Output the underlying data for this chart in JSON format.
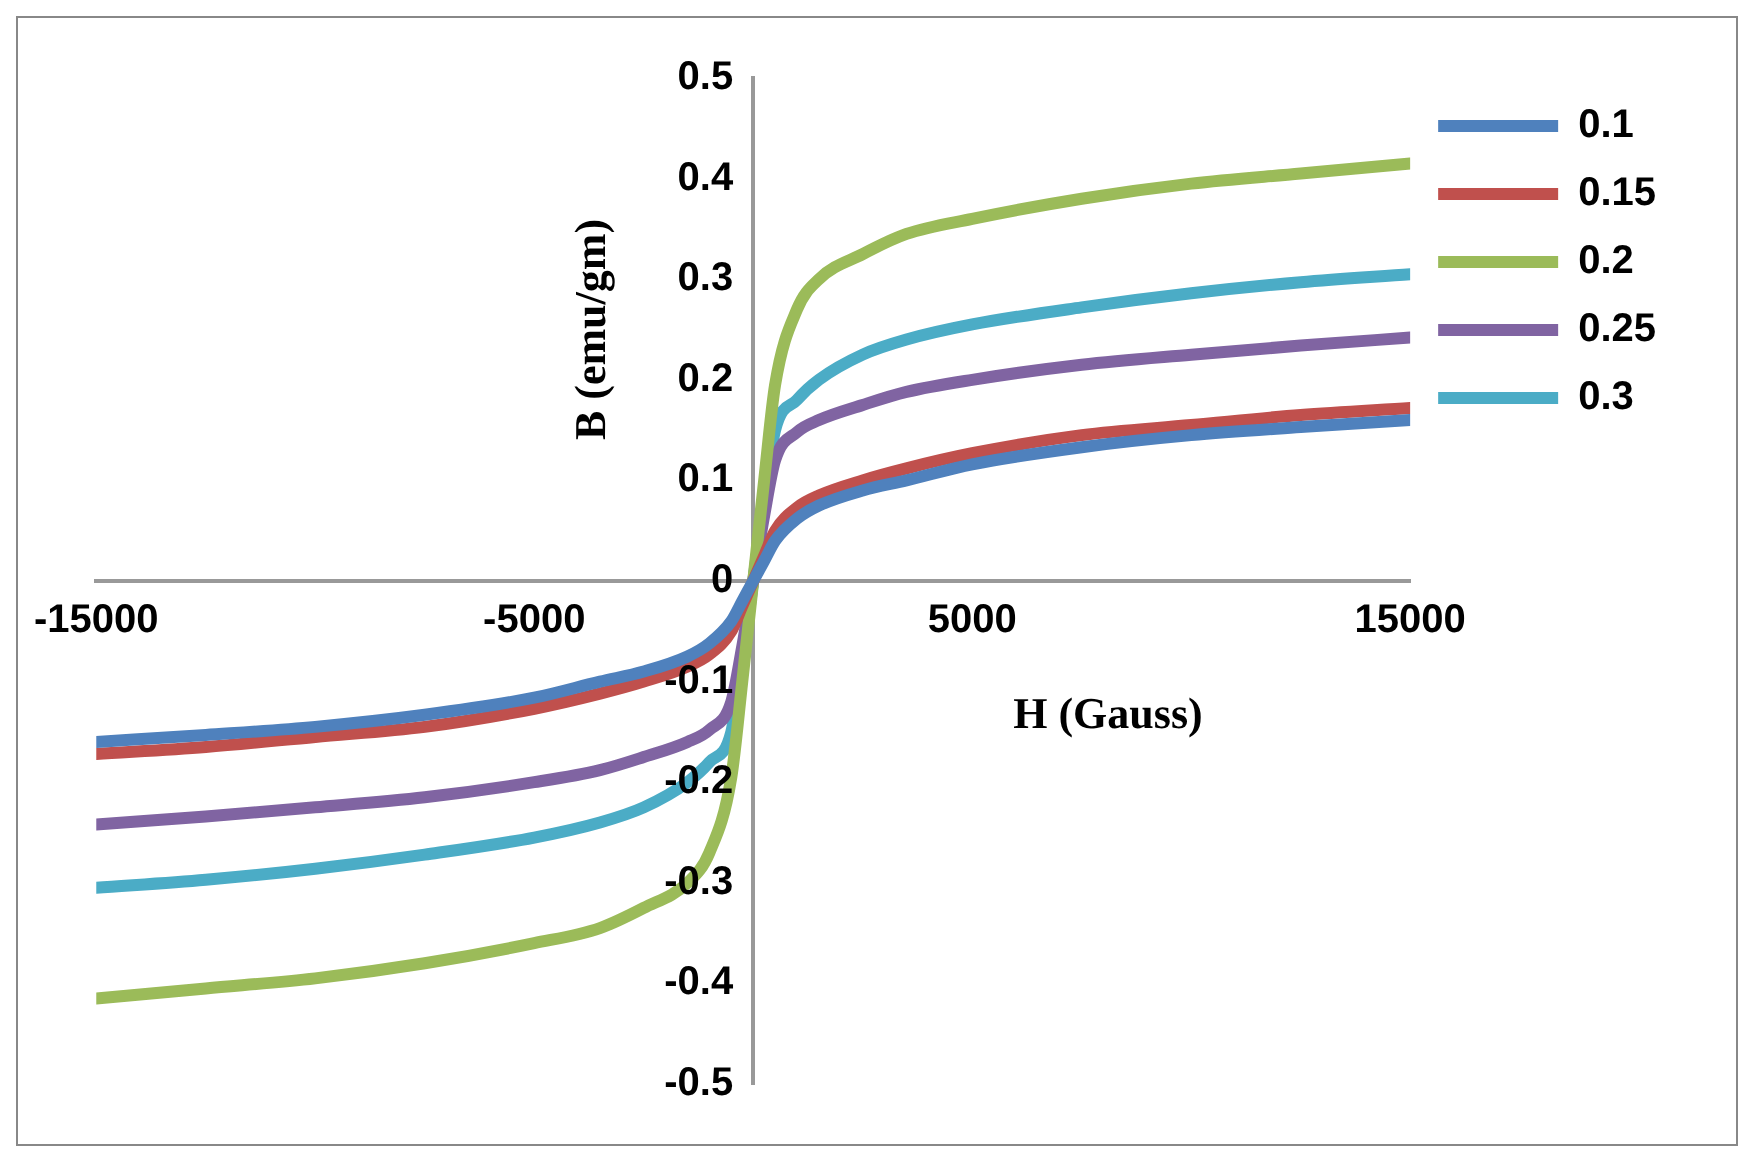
{
  "chart_data": {
    "type": "line",
    "xlabel": "H (Gauss)",
    "ylabel": "B (emu/gm)",
    "x": [
      -15000,
      -12500,
      -10000,
      -7500,
      -5000,
      -3500,
      -2500,
      -1500,
      -1000,
      -500,
      -250,
      0,
      250,
      500,
      1000,
      1500,
      2500,
      3500,
      5000,
      7500,
      10000,
      12500,
      15000
    ],
    "series": [
      {
        "name": "0.1",
        "color": "#4f81bd",
        "values": [
          -0.16,
          -0.153,
          -0.145,
          -0.133,
          -0.116,
          -0.1,
          -0.09,
          -0.075,
          -0.062,
          -0.04,
          -0.02,
          0,
          0.02,
          0.04,
          0.062,
          0.075,
          0.09,
          0.1,
          0.116,
          0.133,
          0.145,
          0.153,
          0.16
        ]
      },
      {
        "name": "0.15",
        "color": "#c0504d",
        "values": [
          -0.172,
          -0.165,
          -0.155,
          -0.145,
          -0.127,
          -0.112,
          -0.1,
          -0.085,
          -0.073,
          -0.05,
          -0.025,
          0,
          0.025,
          0.05,
          0.073,
          0.085,
          0.1,
          0.112,
          0.127,
          0.145,
          0.155,
          0.165,
          0.172
        ]
      },
      {
        "name": "0.2",
        "color": "#9bbb59",
        "values": [
          -0.415,
          -0.405,
          -0.395,
          -0.38,
          -0.36,
          -0.345,
          -0.325,
          -0.3,
          -0.27,
          -0.195,
          -0.1,
          0,
          0.1,
          0.195,
          0.27,
          0.3,
          0.325,
          0.345,
          0.36,
          0.38,
          0.395,
          0.405,
          0.415
        ]
      },
      {
        "name": "0.25",
        "color": "#8064a2",
        "values": [
          -0.242,
          -0.234,
          -0.225,
          -0.215,
          -0.2,
          -0.188,
          -0.175,
          -0.16,
          -0.148,
          -0.12,
          -0.065,
          0,
          0.065,
          0.12,
          0.148,
          0.16,
          0.175,
          0.188,
          0.2,
          0.215,
          0.225,
          0.234,
          0.242
        ]
      },
      {
        "name": "0.3",
        "color": "#4bacc6",
        "values": [
          -0.305,
          -0.297,
          -0.286,
          -0.272,
          -0.255,
          -0.24,
          -0.225,
          -0.2,
          -0.18,
          -0.15,
          -0.08,
          0,
          0.08,
          0.15,
          0.18,
          0.2,
          0.225,
          0.24,
          0.255,
          0.272,
          0.286,
          0.297,
          0.305
        ]
      }
    ],
    "xlim": [
      -15000,
      15000
    ],
    "xticks": [
      -15000,
      -5000,
      5000,
      15000
    ],
    "ylim": [
      -0.5,
      0.5
    ],
    "yticks": [
      -0.5,
      -0.4,
      -0.3,
      -0.2,
      -0.1,
      0,
      0.1,
      0.2,
      0.3,
      0.4,
      0.5
    ],
    "grid": false,
    "legend": "top right",
    "marker": "none",
    "line_style": "solid"
  }
}
